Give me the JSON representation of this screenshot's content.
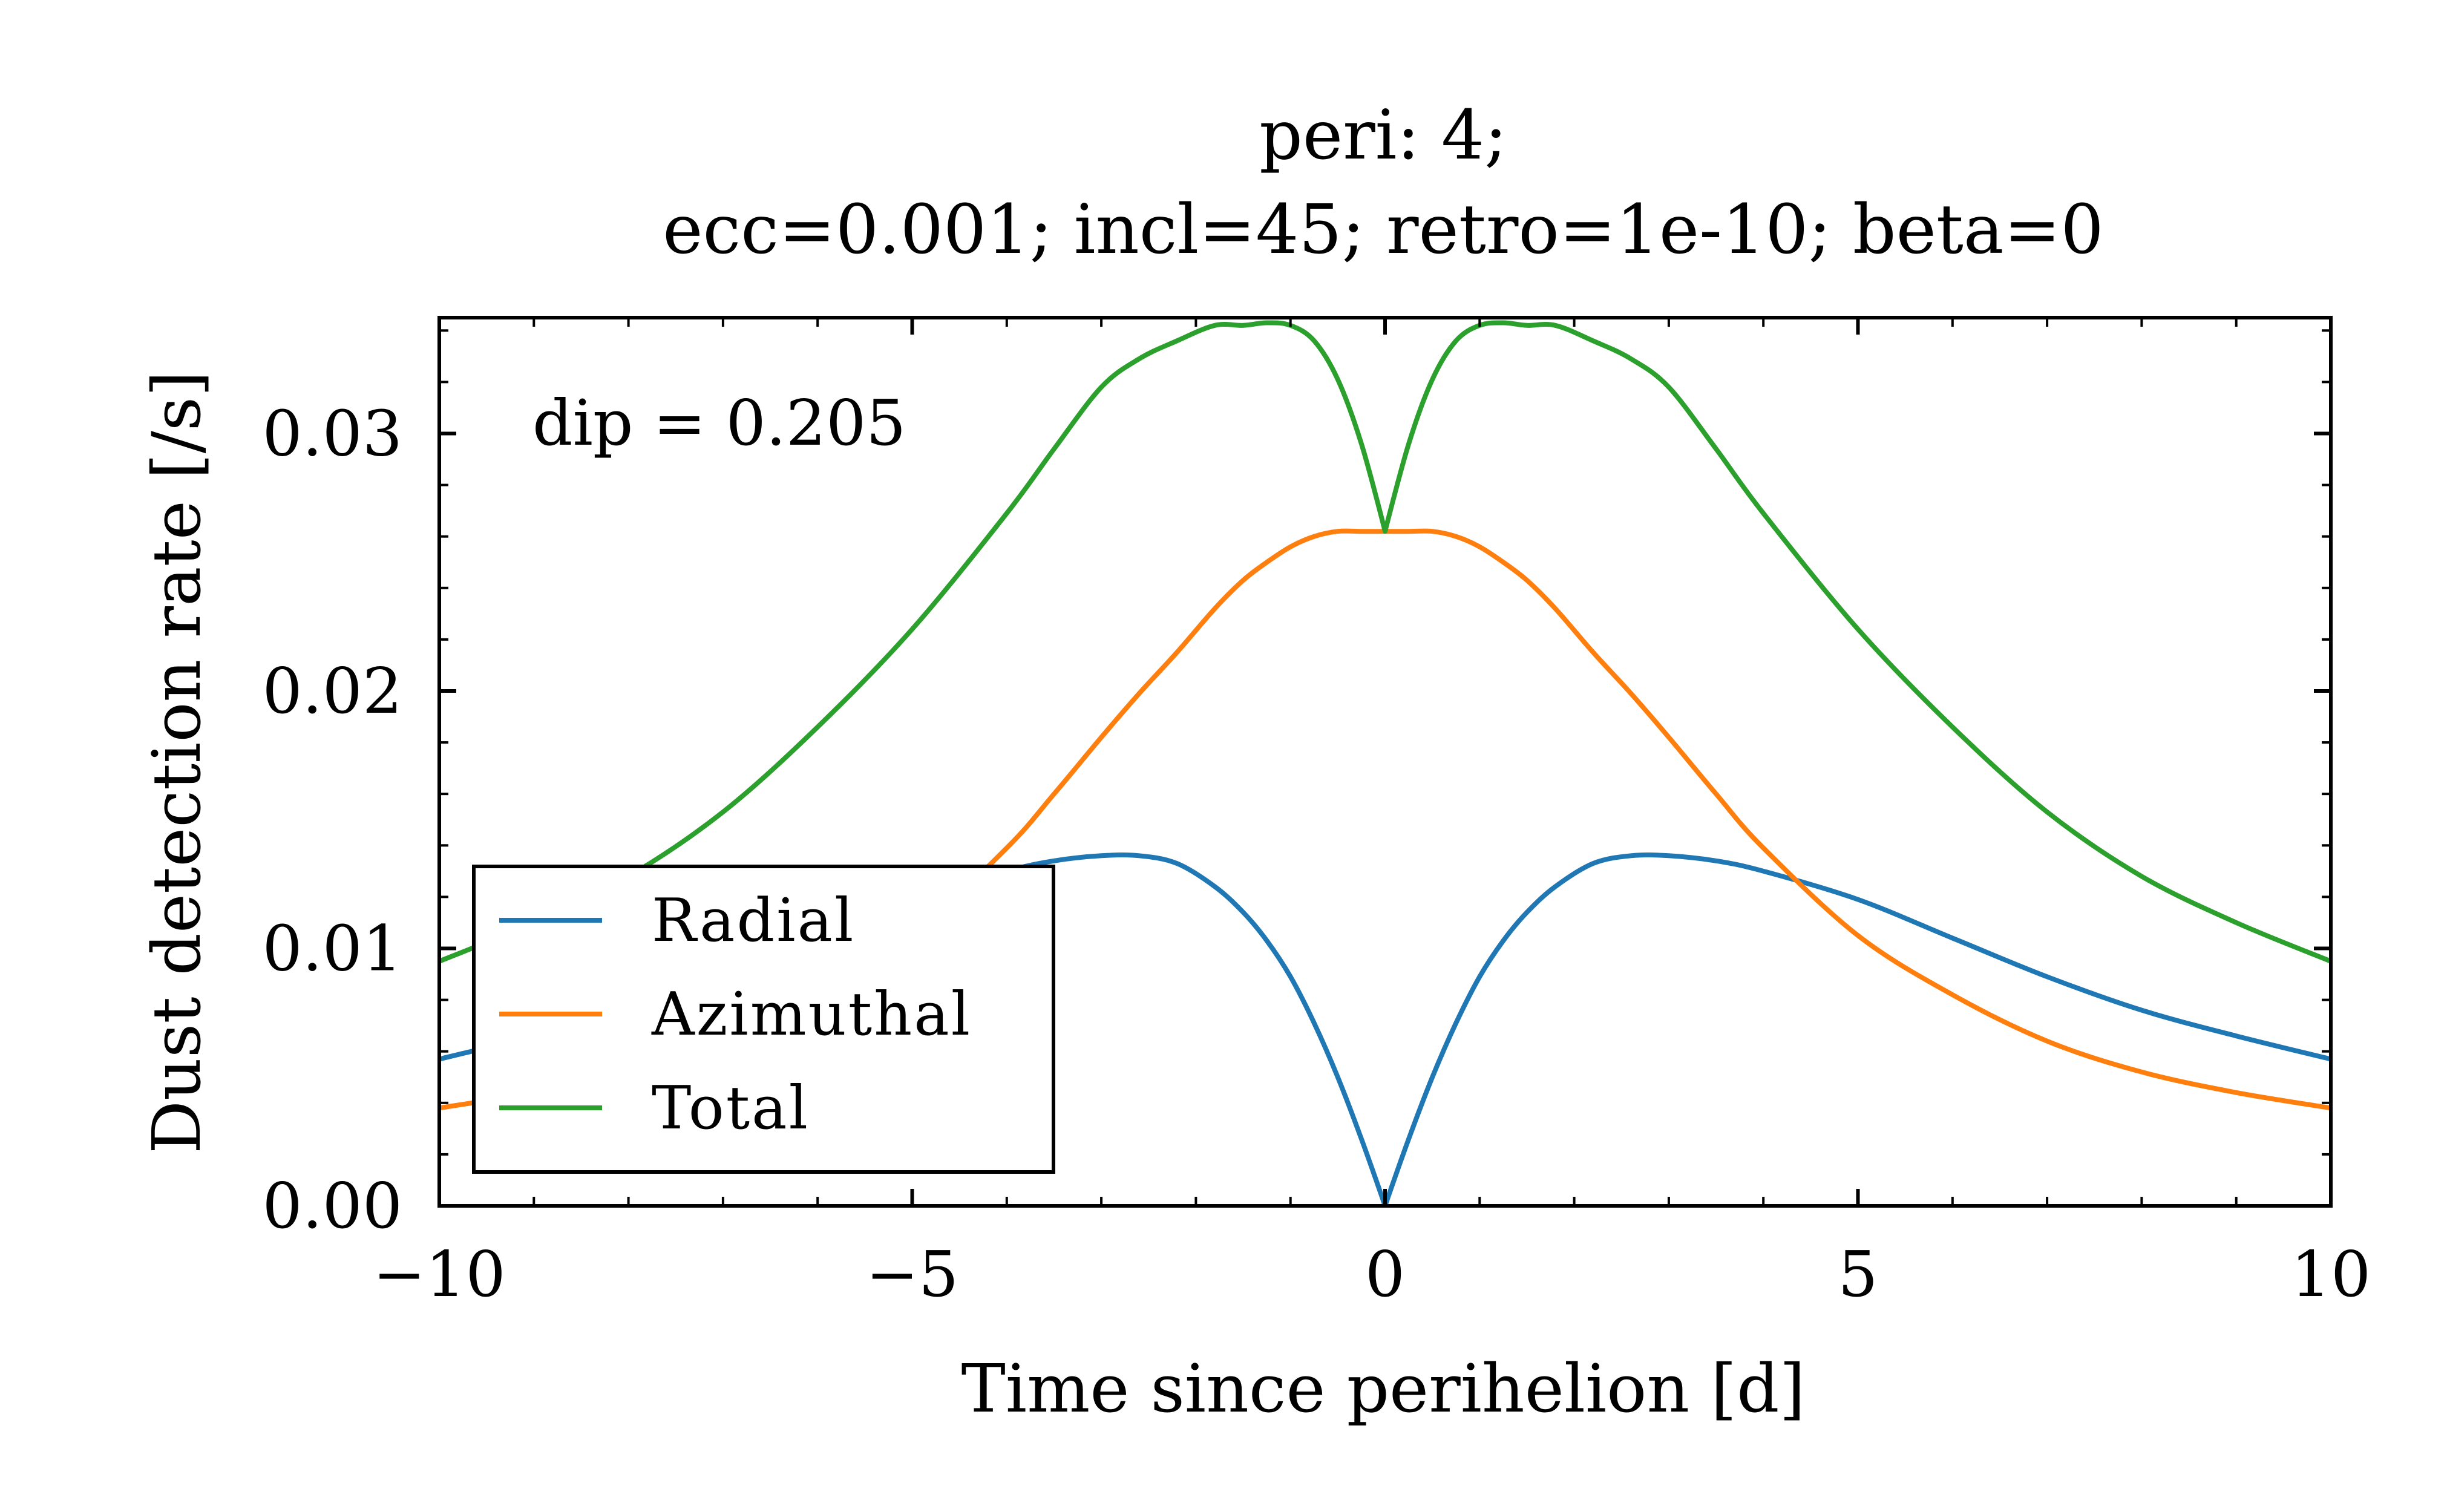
{
  "chart_data": {
    "type": "line",
    "title": [
      "peri:  4;",
      "ecc=0.001; incl=45; retro=1e-10; beta=0"
    ],
    "xlabel": "Time since perihelion [d]",
    "ylabel": "Dust detection rate [/s]",
    "xlim": [
      -10,
      10
    ],
    "ylim": [
      0,
      0.0345
    ],
    "xticks": [
      -10,
      -5,
      0,
      5,
      10
    ],
    "xtick_labels": [
      "−10",
      "−5",
      "0",
      "5",
      "10"
    ],
    "yticks": [
      0,
      0.01,
      0.02,
      0.03
    ],
    "ytick_labels": [
      "0.00",
      "0.01",
      "0.02",
      "0.03"
    ],
    "grid": false,
    "legend_position": "lower-left",
    "annotation": "dip = 0.205",
    "x": [
      -10,
      -9,
      -8,
      -7,
      -6,
      -5,
      -4,
      -3.5,
      -3,
      -2.6,
      -2.2,
      -1.8,
      -1.5,
      -1.25,
      -1,
      -0.75,
      -0.5,
      -0.25,
      0,
      0.25,
      0.5,
      0.75,
      1,
      1.25,
      1.5,
      1.8,
      2.2,
      2.6,
      3,
      3.5,
      4,
      5,
      6,
      7,
      8,
      9,
      10
    ],
    "series": [
      {
        "name": "Radial",
        "color": "#1f77b4",
        "values": [
          0.0057,
          0.0066,
          0.0076,
          0.0089,
          0.0104,
          0.0119,
          0.013,
          0.0134,
          0.0136,
          0.0136,
          0.0133,
          0.0124,
          0.0114,
          0.0103,
          0.0089,
          0.0071,
          0.005,
          0.0026,
          0.0,
          0.0026,
          0.005,
          0.0071,
          0.0089,
          0.0103,
          0.0114,
          0.0124,
          0.0133,
          0.0136,
          0.0136,
          0.0134,
          0.013,
          0.0119,
          0.0104,
          0.0089,
          0.0076,
          0.0066,
          0.0057
        ]
      },
      {
        "name": "Azimuthal",
        "color": "#ff7f0e",
        "values": [
          0.0038,
          0.0044,
          0.0052,
          0.0064,
          0.0082,
          0.0105,
          0.0139,
          0.016,
          0.0182,
          0.0199,
          0.0215,
          0.0232,
          0.0243,
          0.025,
          0.0256,
          0.026,
          0.0262,
          0.0262,
          0.0262,
          0.0262,
          0.0262,
          0.026,
          0.0256,
          0.025,
          0.0243,
          0.0232,
          0.0215,
          0.0199,
          0.0182,
          0.016,
          0.0139,
          0.0105,
          0.0082,
          0.0064,
          0.0052,
          0.0044,
          0.0038
        ]
      },
      {
        "name": "Total",
        "color": "#2ca02c",
        "values": [
          0.0095,
          0.011,
          0.0128,
          0.0153,
          0.0186,
          0.0224,
          0.0269,
          0.0294,
          0.0318,
          0.0329,
          0.0336,
          0.0342,
          0.0342,
          0.0343,
          0.0342,
          0.0336,
          0.0321,
          0.0296,
          0.0262,
          0.0296,
          0.0321,
          0.0336,
          0.0342,
          0.0343,
          0.0342,
          0.0342,
          0.0336,
          0.0329,
          0.0318,
          0.0294,
          0.0269,
          0.0224,
          0.0186,
          0.0153,
          0.0128,
          0.011,
          0.0095
        ]
      }
    ]
  }
}
